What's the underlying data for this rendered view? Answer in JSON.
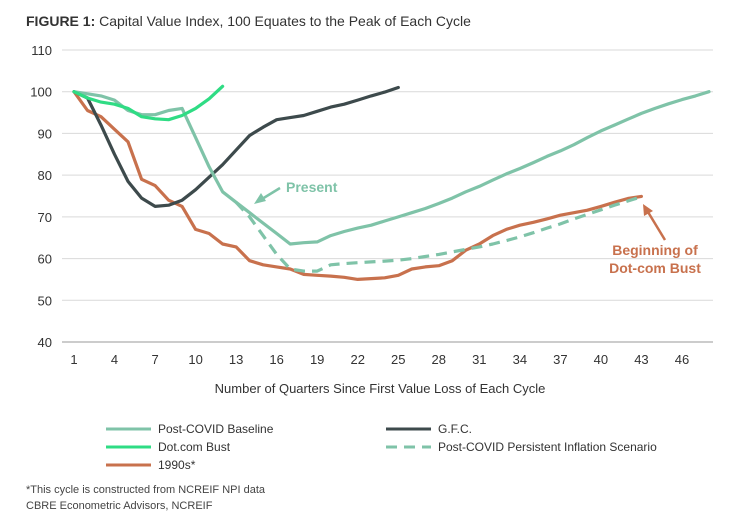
{
  "chart_data": {
    "type": "line",
    "title_prefix": "FIGURE 1:",
    "title": "Capital Value Index, 100 Equates to the Peak of Each Cycle",
    "xlabel": "Number of Quarters Since First Value Loss of Each Cycle",
    "ylabel": "",
    "xlim": [
      1,
      48
    ],
    "ylim": [
      40,
      110
    ],
    "x_ticks": [
      1,
      4,
      7,
      10,
      13,
      16,
      19,
      22,
      25,
      28,
      31,
      34,
      37,
      40,
      43,
      46
    ],
    "y_ticks": [
      40,
      50,
      60,
      70,
      80,
      90,
      100,
      110
    ],
    "grid": "horizontal",
    "series": [
      {
        "name": "Post-COVID Baseline",
        "color": "#7fc3a8",
        "style": "solid",
        "x": [
          1,
          2,
          3,
          4,
          5,
          6,
          7,
          8,
          9,
          10,
          11,
          12,
          13,
          14,
          15,
          16,
          17,
          18,
          19,
          20,
          21,
          22,
          23,
          24,
          25,
          26,
          27,
          28,
          29,
          30,
          31,
          32,
          33,
          34,
          35,
          36,
          37,
          38,
          39,
          40,
          41,
          42,
          43,
          44,
          45,
          46,
          47,
          48
        ],
        "values": [
          100,
          99.5,
          99,
          98,
          95.5,
          94.5,
          94.5,
          95.5,
          96,
          89,
          82,
          76,
          73.5,
          71,
          68.5,
          66,
          63.5,
          63.8,
          64,
          65.5,
          66.5,
          67.3,
          68,
          69,
          70,
          71,
          72,
          73.2,
          74.5,
          76,
          77.3,
          78.8,
          80.3,
          81.6,
          83,
          84.5,
          85.8,
          87.3,
          89,
          90.6,
          92,
          93.4,
          94.8,
          96,
          97.1,
          98.1,
          99,
          100
        ]
      },
      {
        "name": "G.F.C.",
        "color": "#3d4a4c",
        "style": "solid",
        "x": [
          1,
          2,
          3,
          4,
          5,
          6,
          7,
          8,
          9,
          10,
          11,
          12,
          13,
          14,
          15,
          16,
          17,
          18,
          19,
          20,
          21,
          22,
          23,
          24,
          25
        ],
        "values": [
          100,
          98.5,
          92,
          85,
          78.5,
          74.5,
          72.5,
          72.8,
          74,
          76.5,
          79.5,
          82.5,
          86,
          89.5,
          91.5,
          93.3,
          93.8,
          94.3,
          95.3,
          96.3,
          97,
          98,
          99,
          99.9,
          101
        ]
      },
      {
        "name": "Dot.com Bust",
        "color": "#2fdc84",
        "style": "solid",
        "x": [
          1,
          2,
          3,
          4,
          5,
          6,
          7,
          8,
          9,
          10,
          11,
          12
        ],
        "values": [
          100,
          98.5,
          97.5,
          97,
          96,
          94,
          93.5,
          93.3,
          94.3,
          96,
          98.3,
          101.3
        ]
      },
      {
        "name": "Post-COVID Persistent Inflation Scenario",
        "color": "#7fc3a8",
        "style": "dashed",
        "x": [
          13,
          14,
          15,
          16,
          17,
          18,
          19,
          20,
          21,
          22,
          23,
          24,
          25,
          26,
          27,
          28,
          29,
          30,
          31,
          32,
          33,
          34,
          35,
          36,
          37,
          38,
          39,
          40,
          41,
          42,
          43
        ],
        "values": [
          73.5,
          70,
          65.5,
          61,
          57.5,
          57,
          57,
          58.5,
          58.8,
          59,
          59.2,
          59.4,
          59.6,
          60,
          60.5,
          61,
          61.6,
          62.2,
          62.8,
          63.5,
          64.3,
          65.2,
          66.2,
          67.3,
          68.3,
          69.5,
          70.6,
          71.7,
          72.8,
          73.8,
          74.8
        ]
      },
      {
        "name": "1990s*",
        "color": "#c8714d",
        "style": "solid",
        "x": [
          1,
          2,
          3,
          4,
          5,
          6,
          7,
          8,
          9,
          10,
          11,
          12,
          13,
          14,
          15,
          16,
          17,
          18,
          19,
          20,
          21,
          22,
          23,
          24,
          25,
          26,
          27,
          28,
          29,
          30,
          31,
          32,
          33,
          34,
          35,
          36,
          37,
          38,
          39,
          40,
          41,
          42,
          43
        ],
        "values": [
          100,
          95.5,
          94,
          91,
          88,
          79,
          77.5,
          74,
          72.5,
          67,
          66,
          63.5,
          62.8,
          59.5,
          58.5,
          58,
          57.5,
          56.2,
          56,
          55.8,
          55.5,
          55,
          55.2,
          55.4,
          56,
          57.5,
          58,
          58.3,
          59.5,
          62,
          63.5,
          65.5,
          67,
          68,
          68.7,
          69.5,
          70.4,
          71,
          71.6,
          72.5,
          73.5,
          74.4,
          74.9
        ]
      }
    ],
    "annotations": [
      {
        "text": "Present",
        "color": "#7fc3a8"
      },
      {
        "line1": "Beginning of",
        "line2": "Dot-com Bust",
        "color": "#c8714d"
      }
    ],
    "legend_position": "bottom",
    "legend_order": [
      0,
      1,
      2,
      3,
      4
    ]
  },
  "footnotes": {
    "note": "*This cycle is constructed from NCREIF NPI data",
    "source": "CBRE Econometric Advisors, NCREIF"
  }
}
